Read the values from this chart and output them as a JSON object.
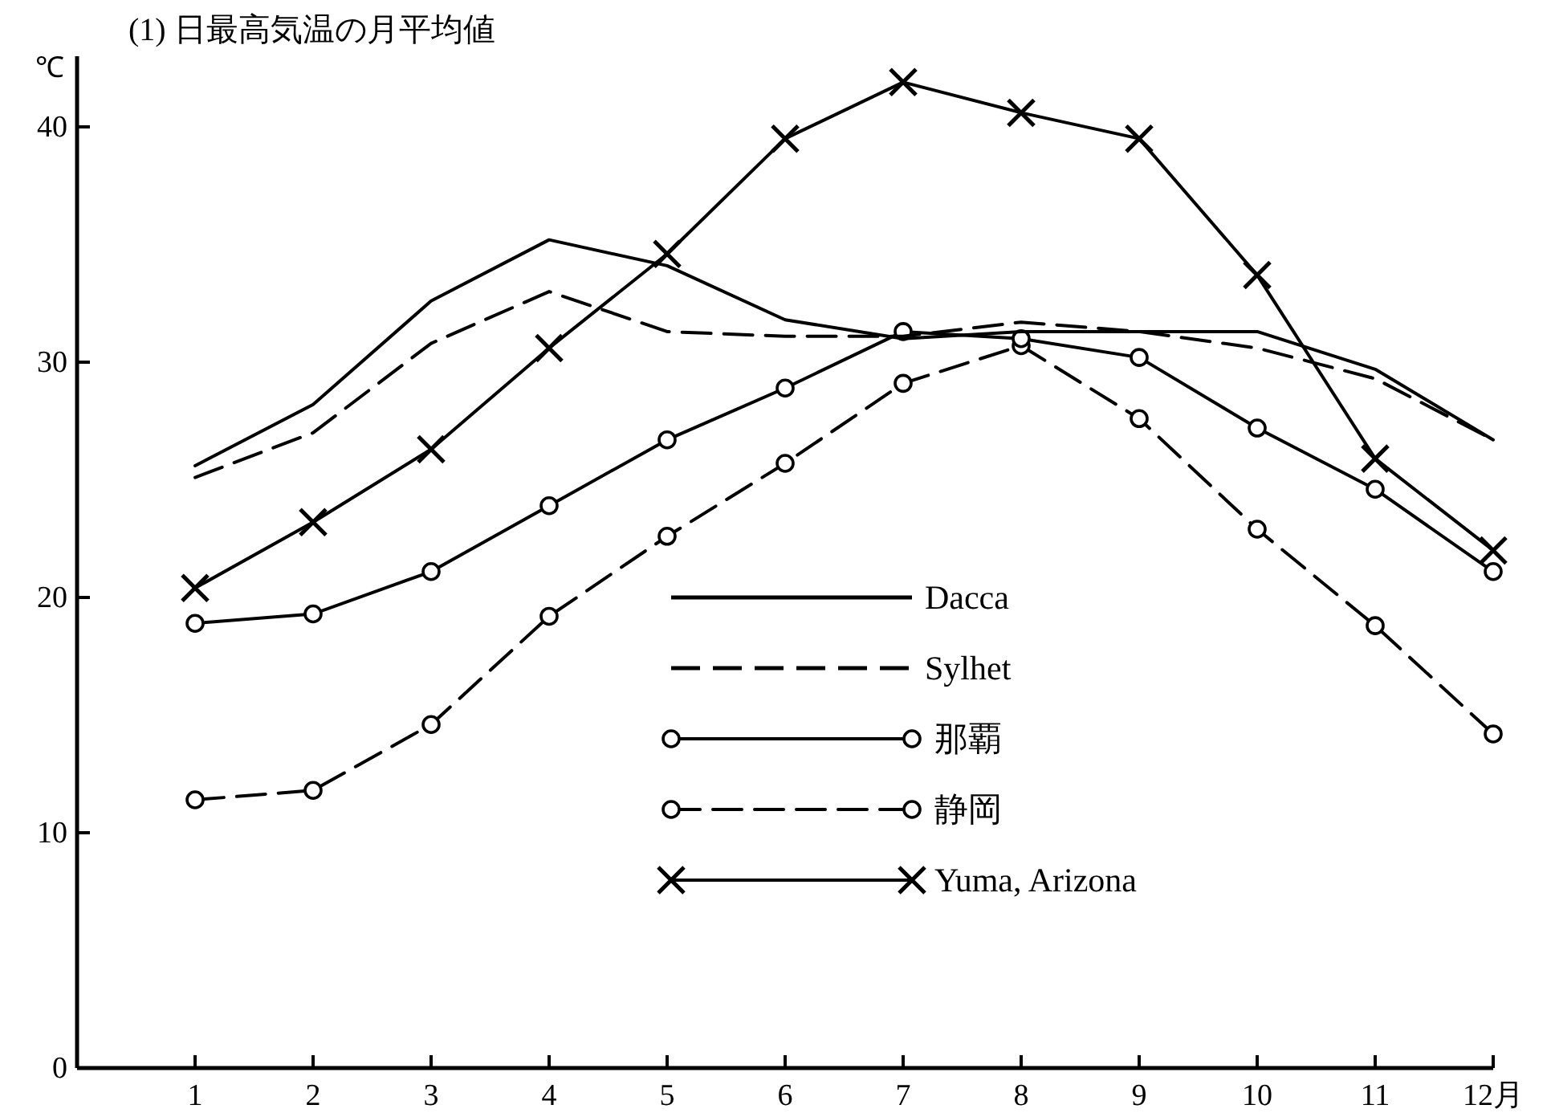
{
  "chart_data": {
    "type": "line",
    "title": "(1) 日最高気温の月平均値",
    "ylabel": "℃",
    "x": [
      1,
      2,
      3,
      4,
      5,
      6,
      7,
      8,
      9,
      10,
      11,
      12
    ],
    "xlim": [
      0,
      12
    ],
    "ylim": [
      0,
      43
    ],
    "xticks": [
      1,
      2,
      3,
      4,
      5,
      6,
      7,
      8,
      9,
      10,
      11,
      {
        "value": 12,
        "label": "12月"
      }
    ],
    "yticks": [
      0,
      10,
      20,
      30,
      40
    ],
    "legend": "right",
    "series": [
      {
        "name": "Dacca",
        "color": "#000000",
        "marker": "none",
        "line_style": "solid",
        "values": [
          25.6,
          28.2,
          32.6,
          35.2,
          34.1,
          31.8,
          31.0,
          31.3,
          31.3,
          31.3,
          29.7,
          26.7
        ]
      },
      {
        "name": "Sylhet",
        "color": "#000000",
        "marker": "none",
        "line_style": "dashed",
        "values": [
          25.1,
          27.0,
          30.8,
          33.0,
          31.3,
          31.1,
          31.1,
          31.7,
          31.3,
          30.6,
          29.3,
          26.7
        ]
      },
      {
        "name": "那覇",
        "color": "#000000",
        "marker": "circle",
        "line_style": "solid",
        "values": [
          18.9,
          19.3,
          21.1,
          23.9,
          26.7,
          28.9,
          31.3,
          31.0,
          30.2,
          27.2,
          24.6,
          21.1
        ]
      },
      {
        "name": "静岡",
        "color": "#000000",
        "marker": "circle",
        "line_style": "dashed",
        "values": [
          11.4,
          11.8,
          14.6,
          19.2,
          22.6,
          25.7,
          29.1,
          30.7,
          27.6,
          22.9,
          18.8,
          14.2
        ]
      },
      {
        "name": "Yuma, Arizona",
        "color": "#000000",
        "marker": "cross",
        "line_style": "solid",
        "values": [
          20.4,
          23.2,
          26.3,
          30.6,
          34.6,
          39.5,
          41.9,
          40.6,
          39.5,
          33.7,
          25.9,
          22.0
        ]
      }
    ]
  }
}
